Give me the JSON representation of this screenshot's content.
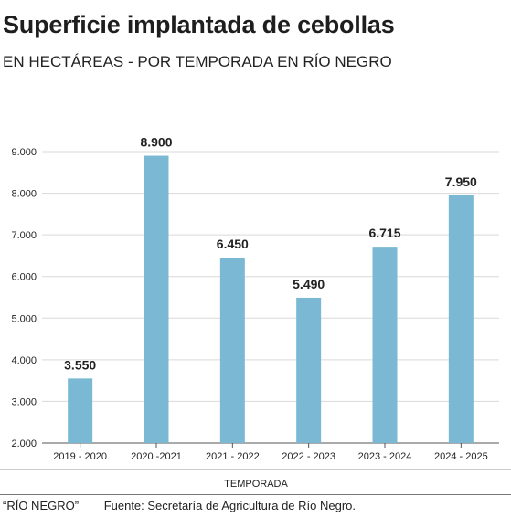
{
  "title": "Superficie implantada de cebollas",
  "subtitle": "EN HECTÁREAS - POR TEMPORADA EN RÍO NEGRO",
  "footer": {
    "credit": "“RÍO NEGRO”",
    "source": "Fuente: Secretaría de Agricultura de Río Negro."
  },
  "colors": {
    "bar": "#7bb8d4",
    "grid": "#d9d9d9",
    "axis": "#555555"
  },
  "chart_data": {
    "type": "bar",
    "categories": [
      "2019 - 2020",
      "2020 -2021",
      "2021 - 2022",
      "2022 - 2023",
      "2023 - 2024",
      "2024 - 2025"
    ],
    "values": [
      3550,
      8900,
      6450,
      5490,
      6715,
      7950
    ],
    "data_labels": [
      "3.550",
      "8.900",
      "6.450",
      "5.490",
      "6.715",
      "7.950"
    ],
    "yticks": [
      2000,
      3000,
      4000,
      5000,
      6000,
      7000,
      8000,
      9000
    ],
    "ytick_labels": [
      "2.000",
      "3.000",
      "4.000",
      "5.000",
      "6.000",
      "7.000",
      "8.000",
      "9.000"
    ],
    "ylim": [
      2000,
      9000
    ],
    "xlabel": "TEMPORADA",
    "ylabel": "",
    "grid": true
  }
}
